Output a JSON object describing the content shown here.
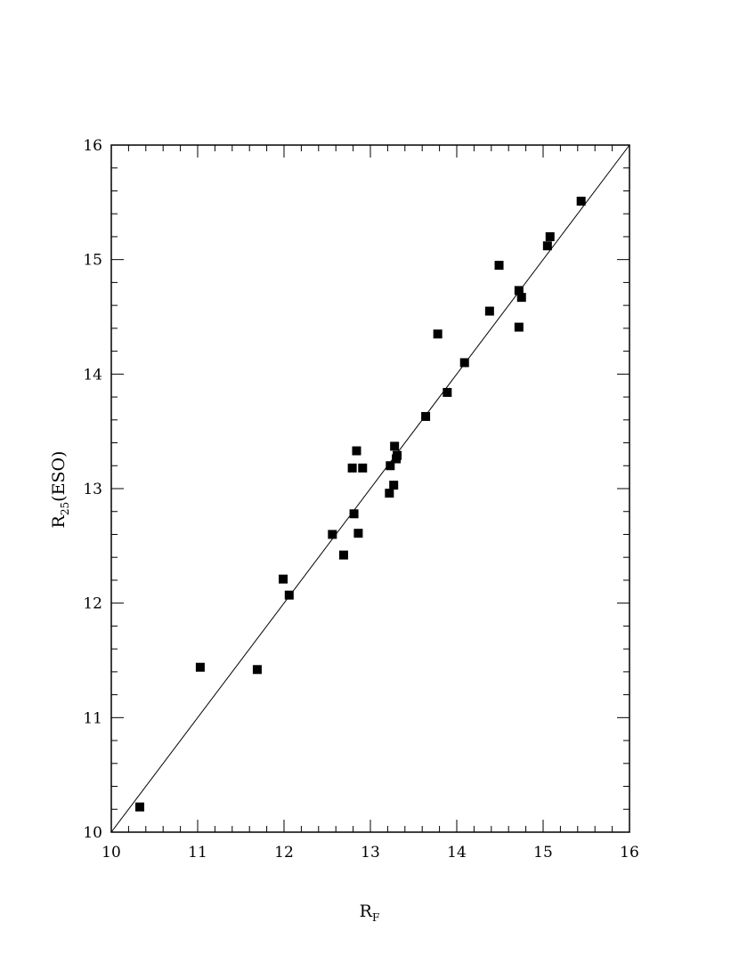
{
  "chart_data": {
    "type": "scatter",
    "title": "",
    "xlabel": {
      "main": "R",
      "sub": "F"
    },
    "ylabel": {
      "main": "R",
      "sub": "25",
      "suffix": "(ESO)"
    },
    "xlim": [
      10,
      16
    ],
    "ylim": [
      10,
      16
    ],
    "xticks": [
      "10",
      "11",
      "12",
      "13",
      "14",
      "15",
      "16"
    ],
    "yticks": [
      "10",
      "11",
      "12",
      "13",
      "14",
      "15",
      "16"
    ],
    "grid": false,
    "reference_line": {
      "x": [
        10,
        16
      ],
      "y": [
        10,
        16
      ]
    },
    "points": [
      {
        "x": 10.33,
        "y": 10.22
      },
      {
        "x": 11.03,
        "y": 11.44
      },
      {
        "x": 11.69,
        "y": 11.42
      },
      {
        "x": 11.99,
        "y": 12.21
      },
      {
        "x": 12.06,
        "y": 12.07
      },
      {
        "x": 12.56,
        "y": 12.6
      },
      {
        "x": 12.69,
        "y": 12.42
      },
      {
        "x": 12.79,
        "y": 13.18
      },
      {
        "x": 12.81,
        "y": 12.78
      },
      {
        "x": 12.84,
        "y": 13.33
      },
      {
        "x": 12.86,
        "y": 12.61
      },
      {
        "x": 12.91,
        "y": 13.18
      },
      {
        "x": 13.22,
        "y": 12.96
      },
      {
        "x": 13.23,
        "y": 13.2
      },
      {
        "x": 13.27,
        "y": 13.03
      },
      {
        "x": 13.28,
        "y": 13.37
      },
      {
        "x": 13.3,
        "y": 13.26
      },
      {
        "x": 13.31,
        "y": 13.29
      },
      {
        "x": 13.64,
        "y": 13.63
      },
      {
        "x": 13.78,
        "y": 14.35
      },
      {
        "x": 13.89,
        "y": 13.84
      },
      {
        "x": 14.09,
        "y": 14.1
      },
      {
        "x": 14.38,
        "y": 14.55
      },
      {
        "x": 14.49,
        "y": 14.95
      },
      {
        "x": 14.72,
        "y": 14.41
      },
      {
        "x": 14.72,
        "y": 14.73
      },
      {
        "x": 14.75,
        "y": 14.67
      },
      {
        "x": 15.05,
        "y": 15.12
      },
      {
        "x": 15.08,
        "y": 15.2
      },
      {
        "x": 15.44,
        "y": 15.51
      }
    ]
  }
}
